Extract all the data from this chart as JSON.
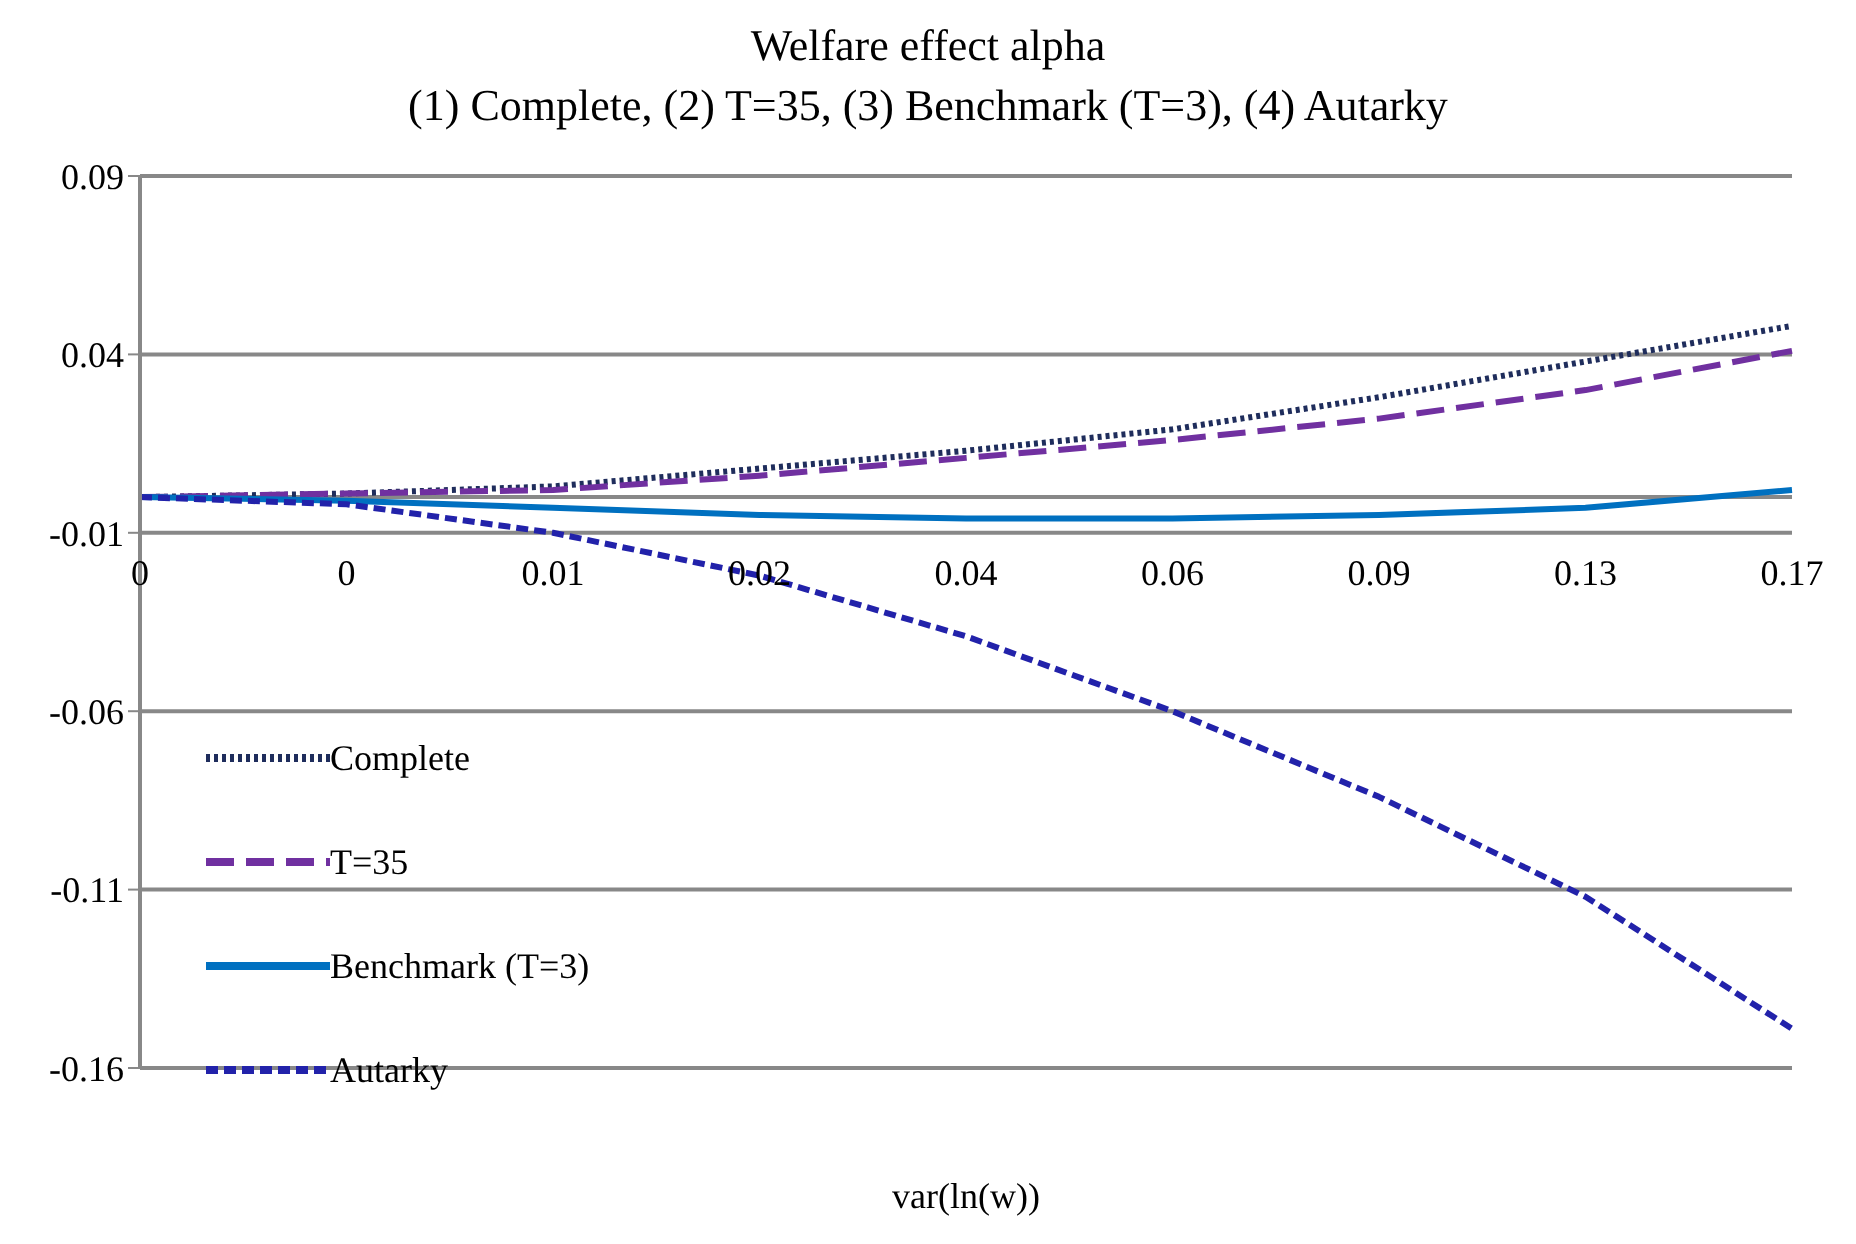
{
  "chart_data": {
    "type": "line",
    "title": "Welfare effect alpha",
    "subtitle": "(1) Complete, (2) T=35, (3) Benchmark (T=3), (4) Autarky",
    "xlabel": "var(ln(w))",
    "categories": [
      "0",
      "0",
      "0.01",
      "0.02",
      "0.04",
      "0.06",
      "0.09",
      "0.13",
      "0.17"
    ],
    "series": [
      {
        "name": "Complete",
        "color": "#1f2d5c",
        "line_style": "dotted",
        "values": [
          0.0,
          0.001,
          0.003,
          0.008,
          0.013,
          0.019,
          0.028,
          0.038,
          0.048
        ]
      },
      {
        "name": "T=35",
        "color": "#7030a0",
        "line_style": "dashed",
        "values": [
          0.0,
          0.001,
          0.002,
          0.006,
          0.011,
          0.016,
          0.022,
          0.03,
          0.041
        ]
      },
      {
        "name": "Benchmark (T=3)",
        "color": "#0070c0",
        "line_style": "solid",
        "values": [
          0.0,
          -0.001,
          -0.003,
          -0.005,
          -0.006,
          -0.006,
          -0.005,
          -0.003,
          0.002
        ]
      },
      {
        "name": "Autarky",
        "color": "#2222aa",
        "line_style": "dashed",
        "values": [
          0.0,
          -0.002,
          -0.01,
          -0.022,
          -0.039,
          -0.06,
          -0.084,
          -0.112,
          -0.149
        ]
      }
    ],
    "ylim": [
      -0.16,
      0.09
    ],
    "yticks": [
      -0.16,
      -0.11,
      -0.06,
      -0.01,
      0.04,
      0.09
    ],
    "grid": "y",
    "legend": "left",
    "marker": "none"
  }
}
